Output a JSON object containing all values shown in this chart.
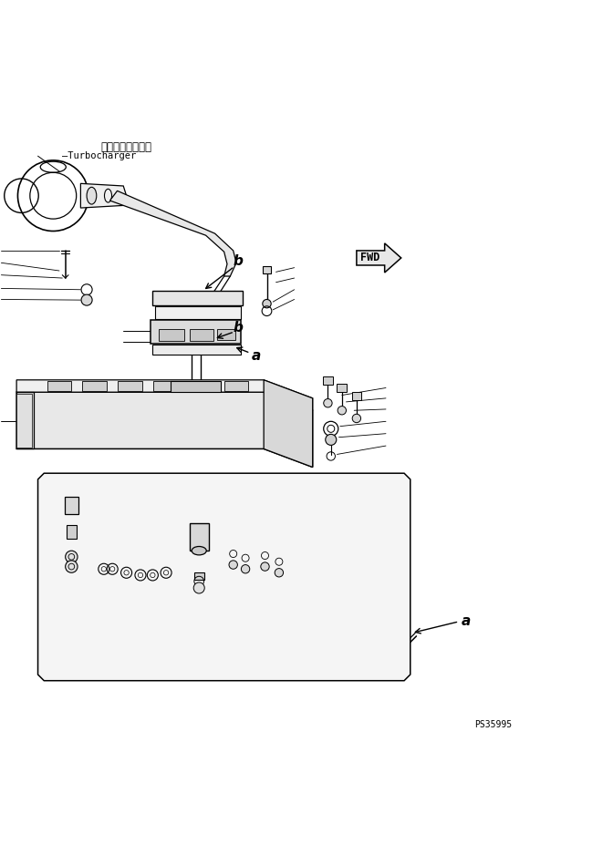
{
  "bg_color": "#ffffff",
  "line_color": "#000000",
  "figsize": [
    6.72,
    9.38
  ],
  "dpi": 100,
  "title_jp": "ターボチャージャ",
  "title_en": "Turbocharger",
  "label_a": "a",
  "label_b": "b",
  "label_fwd": "FWD",
  "part_code": "PS35995"
}
